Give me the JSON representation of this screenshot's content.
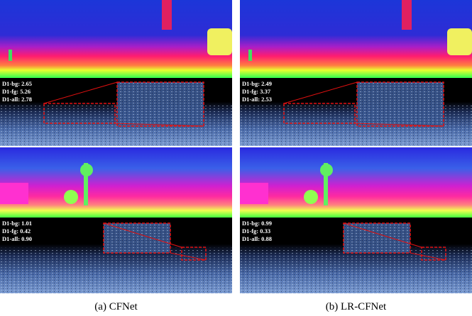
{
  "panels": [
    {
      "caption": "(a) CFNet",
      "scenes": [
        {
          "metrics": [
            "D1-bg: 2.65",
            "D1-fg: 5.26",
            "D1-all: 2.78"
          ]
        },
        {
          "metrics": [
            "D1-bg: 1.01",
            "D1-fg: 0.42",
            "D1-all: 0.90"
          ]
        }
      ]
    },
    {
      "caption": "(b) LR-CFNet",
      "scenes": [
        {
          "metrics": [
            "D1-bg: 2.49",
            "D1-fg: 3.37",
            "D1-all: 2.53"
          ]
        },
        {
          "metrics": [
            "D1-bg: 0.99",
            "D1-fg: 0.33",
            "D1-all: 0.88"
          ]
        }
      ]
    }
  ]
}
